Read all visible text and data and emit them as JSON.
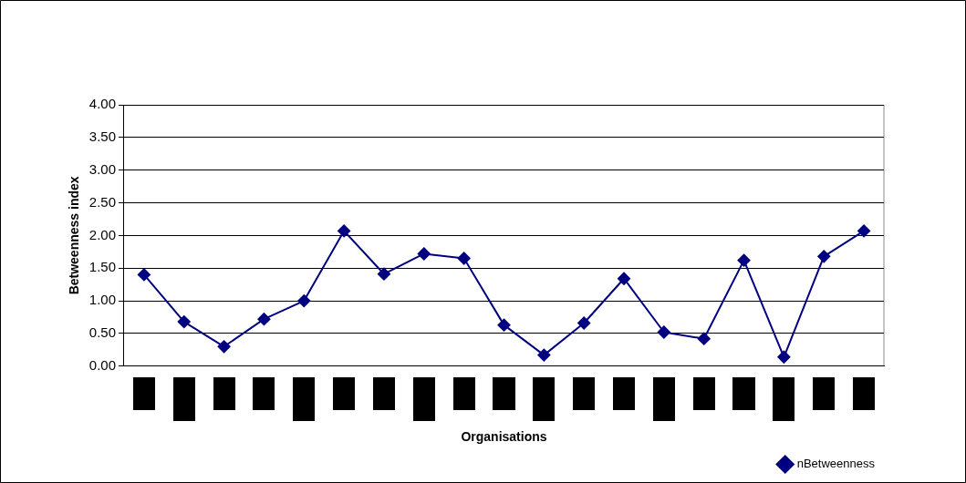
{
  "chart_data": {
    "type": "line",
    "xlabel": "Organisations",
    "ylabel": "Betweenness index",
    "categories": [
      null,
      null,
      null,
      null,
      null,
      null,
      null,
      null,
      null,
      null,
      null,
      null,
      null,
      null,
      null,
      null,
      null,
      null,
      null
    ],
    "series": [
      {
        "name": "nBetweenness",
        "color": "#000080",
        "values": [
          1.4,
          0.68,
          0.3,
          0.72,
          1.0,
          2.07,
          1.41,
          1.72,
          1.65,
          0.63,
          0.17,
          0.66,
          1.34,
          0.52,
          0.42,
          1.62,
          0.14,
          1.68,
          2.07
        ]
      }
    ],
    "ylim": [
      0,
      4
    ],
    "yticks": [
      {
        "value": 0,
        "label": "0.00"
      },
      {
        "value": 0.5,
        "label": "0.50"
      },
      {
        "value": 1,
        "label": "1.00"
      },
      {
        "value": 1.5,
        "label": "1.50"
      },
      {
        "value": 2,
        "label": "2.00"
      },
      {
        "value": 2.5,
        "label": "2.50"
      },
      {
        "value": 3,
        "label": "3.00"
      },
      {
        "value": 3.5,
        "label": "3.50"
      },
      {
        "value": 4,
        "label": "4.00"
      }
    ],
    "grid": "y",
    "legend": "bottom right",
    "marker": "diamond",
    "line_style": "solid"
  }
}
